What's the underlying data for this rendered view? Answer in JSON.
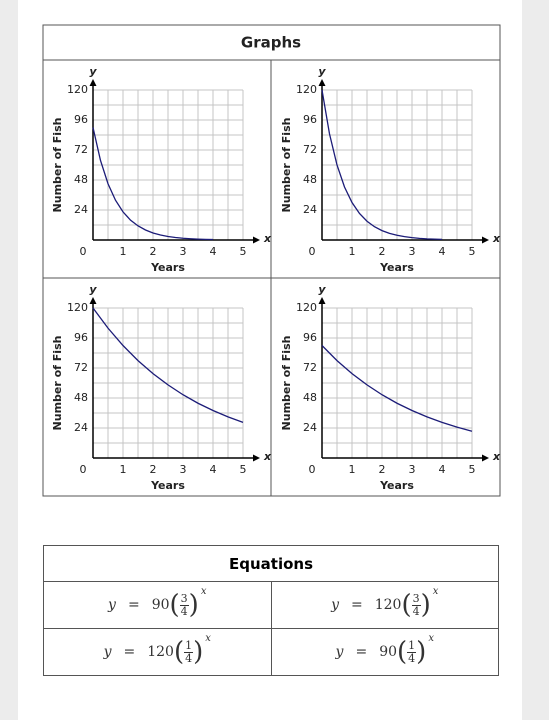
{
  "header": {
    "title": "Graphs"
  },
  "chart_data": [
    {
      "type": "line",
      "xlabel": "Years",
      "ylabel": "Number of Fish",
      "x_axis_symbol": "x",
      "y_axis_symbol": "y",
      "xlim": [
        0,
        5
      ],
      "ylim": [
        0,
        120
      ],
      "xticks": [
        0,
        1,
        2,
        3,
        4,
        5
      ],
      "yticks": [
        24,
        48,
        72,
        96,
        120
      ],
      "grid": true,
      "x": [
        0,
        0.25,
        0.5,
        0.75,
        1,
        1.25,
        1.5,
        1.75,
        2,
        2.25,
        2.5,
        2.75,
        3,
        3.25,
        3.5,
        3.75,
        4
      ],
      "series": [
        {
          "color": "#1c1c78",
          "values": [
            90,
            63.6,
            45,
            31.8,
            22.5,
            15.9,
            11.3,
            8.0,
            5.6,
            4.0,
            2.8,
            2.0,
            1.4,
            1.0,
            0.7,
            0.5,
            0.4
          ]
        }
      ]
    },
    {
      "type": "line",
      "xlabel": "Years",
      "ylabel": "Number of Fish",
      "x_axis_symbol": "x",
      "y_axis_symbol": "y",
      "xlim": [
        0,
        5
      ],
      "ylim": [
        0,
        120
      ],
      "xticks": [
        0,
        1,
        2,
        3,
        4,
        5
      ],
      "yticks": [
        24,
        48,
        72,
        96,
        120
      ],
      "grid": true,
      "x": [
        0,
        0.25,
        0.5,
        0.75,
        1,
        1.25,
        1.5,
        1.75,
        2,
        2.25,
        2.5,
        2.75,
        3,
        3.25,
        3.5,
        3.75,
        4
      ],
      "series": [
        {
          "color": "#1c1c78",
          "values": [
            120,
            84.9,
            60,
            42.4,
            30,
            21.2,
            15,
            10.6,
            7.5,
            5.3,
            3.8,
            2.7,
            1.9,
            1.3,
            0.9,
            0.7,
            0.5
          ]
        }
      ]
    },
    {
      "type": "line",
      "xlabel": "Years",
      "ylabel": "Number of Fish",
      "x_axis_symbol": "x",
      "y_axis_symbol": "y",
      "xlim": [
        0,
        5
      ],
      "ylim": [
        0,
        120
      ],
      "xticks": [
        0,
        1,
        2,
        3,
        4,
        5
      ],
      "yticks": [
        24,
        48,
        72,
        96,
        120
      ],
      "grid": true,
      "x": [
        0,
        0.5,
        1,
        1.5,
        2,
        2.5,
        3,
        3.5,
        4,
        4.5,
        5
      ],
      "series": [
        {
          "color": "#1c1c78",
          "values": [
            120,
            103.9,
            90,
            77.9,
            67.5,
            58.5,
            50.6,
            43.8,
            38.0,
            32.9,
            28.5
          ]
        }
      ]
    },
    {
      "type": "line",
      "xlabel": "Years",
      "ylabel": "Number of Fish",
      "x_axis_symbol": "x",
      "y_axis_symbol": "y",
      "xlim": [
        0,
        5
      ],
      "ylim": [
        0,
        120
      ],
      "xticks": [
        0,
        1,
        2,
        3,
        4,
        5
      ],
      "yticks": [
        24,
        48,
        72,
        96,
        120
      ],
      "grid": true,
      "x": [
        0,
        0.5,
        1,
        1.5,
        2,
        2.5,
        3,
        3.5,
        4,
        4.5,
        5
      ],
      "series": [
        {
          "color": "#1c1c78",
          "values": [
            90,
            77.9,
            67.5,
            58.5,
            50.6,
            43.8,
            38.0,
            32.9,
            28.5,
            24.7,
            21.4
          ]
        }
      ]
    }
  ],
  "equations": {
    "title": "Equations",
    "rows": [
      [
        {
          "lhs": "y",
          "sign": "=",
          "coefficient": "90",
          "numerator": "3",
          "denominator": "4",
          "exponent": "x"
        },
        {
          "lhs": "y",
          "sign": "=",
          "coefficient": "120",
          "numerator": "3",
          "denominator": "4",
          "exponent": "x"
        }
      ],
      [
        {
          "lhs": "y",
          "sign": "=",
          "coefficient": "120",
          "numerator": "1",
          "denominator": "4",
          "exponent": "x"
        },
        {
          "lhs": "y",
          "sign": "=",
          "coefficient": "90",
          "numerator": "1",
          "denominator": "4",
          "exponent": "x"
        }
      ]
    ]
  }
}
